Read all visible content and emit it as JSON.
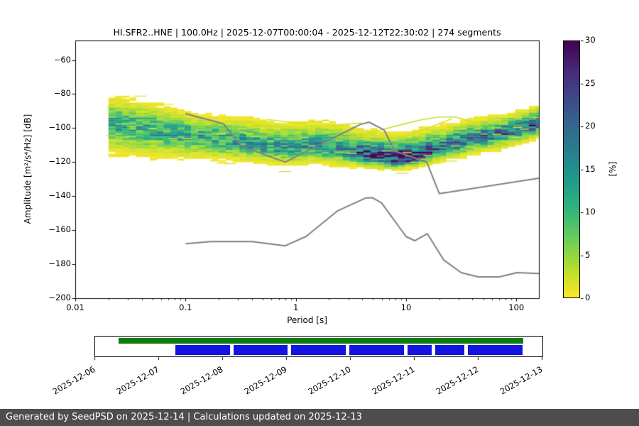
{
  "title": "HI.SFR2..HNE | 100.0Hz | 2025-12-07T00:00:04 - 2025-12-12T22:30:02 | 274 segments",
  "footer": {
    "text": "Generated by SeedPSD on 2025-12-14 | Calculations updated on 2025-12-13",
    "background": "#4d4d4d"
  },
  "axes": {
    "xlabel": "Period [s]",
    "ylabel": "Amplitude [m²/s⁴/Hz] [dB]",
    "xticks": [
      {
        "value": 0.01,
        "label": "0.01"
      },
      {
        "value": 0.1,
        "label": "0.1"
      },
      {
        "value": 1,
        "label": "1"
      },
      {
        "value": 10,
        "label": "10"
      },
      {
        "value": 100,
        "label": "100"
      }
    ],
    "yticks": [
      {
        "value": -60,
        "label": "−60"
      },
      {
        "value": -80,
        "label": "−80"
      },
      {
        "value": -100,
        "label": "−100"
      },
      {
        "value": -120,
        "label": "−120"
      },
      {
        "value": -140,
        "label": "−140"
      },
      {
        "value": -160,
        "label": "−160"
      },
      {
        "value": -180,
        "label": "−180"
      },
      {
        "value": -200,
        "label": "−200"
      }
    ]
  },
  "colorbar": {
    "label": "[%]",
    "min": 0,
    "max": 30,
    "ticks": [
      {
        "value": 0,
        "label": "0"
      },
      {
        "value": 5,
        "label": "5"
      },
      {
        "value": 10,
        "label": "10"
      },
      {
        "value": 15,
        "label": "15"
      },
      {
        "value": 20,
        "label": "20"
      },
      {
        "value": 25,
        "label": "25"
      },
      {
        "value": 30,
        "label": "30"
      }
    ],
    "colors": [
      "#440154",
      "#482878",
      "#3e4989",
      "#31688e",
      "#26828e",
      "#1f9e89",
      "#35b779",
      "#6ece58",
      "#b5de2b",
      "#fde725"
    ]
  },
  "chart_data": {
    "type": "heatmap",
    "title": "HI.SFR2..HNE | 100.0Hz | 2025-12-07T00:00:04 - 2025-12-12T22:30:02 | 274 segments",
    "xlabel": "Period [s]",
    "ylabel": "Amplitude [m²/s⁴/Hz] [dB]",
    "x_scale": "log",
    "xlim": [
      0.01,
      160
    ],
    "ylim": [
      -200,
      -48.5
    ],
    "colorbar_units": "%",
    "colorbar_range": [
      0,
      30
    ],
    "density_profile": [
      {
        "period": 0.02,
        "top": -82,
        "mode": -96,
        "bottom": -113,
        "peak": 10
      },
      {
        "period": 0.03,
        "top": -84,
        "mode": -98,
        "bottom": -114,
        "peak": 11
      },
      {
        "period": 0.05,
        "top": -87,
        "mode": -100,
        "bottom": -115,
        "peak": 12
      },
      {
        "period": 0.1,
        "top": -91,
        "mode": -103,
        "bottom": -116,
        "peak": 12
      },
      {
        "period": 0.2,
        "top": -94,
        "mode": -106,
        "bottom": -117,
        "peak": 12
      },
      {
        "period": 0.4,
        "top": -96,
        "mode": -109,
        "bottom": -118,
        "peak": 13
      },
      {
        "period": 0.8,
        "top": -98,
        "mode": -112,
        "bottom": -120,
        "peak": 14
      },
      {
        "period": 1.5,
        "top": -97,
        "mode": -110,
        "bottom": -119,
        "peak": 13
      },
      {
        "period": 3.0,
        "top": -100,
        "mode": -113,
        "bottom": -121,
        "peak": 15
      },
      {
        "period": 5.0,
        "top": -104,
        "mode": -116,
        "bottom": -122,
        "peak": 24
      },
      {
        "period": 8.0,
        "top": -106,
        "mode": -117.5,
        "bottom": -123,
        "peak": 30
      },
      {
        "period": 12.0,
        "top": -104,
        "mode": -116.5,
        "bottom": -122,
        "peak": 26
      },
      {
        "period": 20.0,
        "top": -100,
        "mode": -111,
        "bottom": -118,
        "peak": 17
      },
      {
        "period": 40.0,
        "top": -96,
        "mode": -106,
        "bottom": -114,
        "peak": 17
      },
      {
        "period": 80.0,
        "top": -93,
        "mode": -102,
        "bottom": -110,
        "peak": 18
      },
      {
        "period": 160.0,
        "top": -88,
        "mode": -97,
        "bottom": -104,
        "peak": 20
      }
    ],
    "outlier_tracks": [
      {
        "pct": 2.5,
        "points": [
          [
            4,
            -104
          ],
          [
            6,
            -101
          ],
          [
            9,
            -98
          ],
          [
            14,
            -95
          ],
          [
            20,
            -93.5
          ],
          [
            28,
            -93.5
          ],
          [
            38,
            -96
          ],
          [
            50,
            -100
          ]
        ]
      },
      {
        "pct": 2.0,
        "points": [
          [
            9,
            -106
          ],
          [
            13,
            -102
          ],
          [
            19,
            -98
          ],
          [
            26,
            -94.5
          ]
        ]
      },
      {
        "pct": 2.0,
        "points": [
          [
            0.25,
            -96
          ],
          [
            0.5,
            -98
          ],
          [
            1.1,
            -100
          ],
          [
            2.5,
            -98
          ],
          [
            4,
            -97
          ]
        ]
      },
      {
        "pct": 1.5,
        "points": [
          [
            0.55,
            -95
          ],
          [
            1,
            -97
          ],
          [
            2,
            -95.5
          ]
        ]
      }
    ],
    "noise_models": {
      "color": "#808080",
      "nhnm": [
        [
          0.1,
          -91.5
        ],
        [
          0.22,
          -97.4
        ],
        [
          0.32,
          -110.5
        ],
        [
          0.8,
          -120.0
        ],
        [
          3.8,
          -98.0
        ],
        [
          4.6,
          -96.5
        ],
        [
          6.3,
          -101.0
        ],
        [
          7.9,
          -113.5
        ],
        [
          15.4,
          -120.0
        ],
        [
          20.0,
          -138.5
        ],
        [
          160.0,
          -129.5
        ]
      ],
      "nlnm": [
        [
          0.1,
          -168.0
        ],
        [
          0.17,
          -166.7
        ],
        [
          0.4,
          -166.7
        ],
        [
          0.8,
          -169.2
        ],
        [
          1.24,
          -163.7
        ],
        [
          2.4,
          -148.6
        ],
        [
          4.3,
          -141.1
        ],
        [
          5.0,
          -141.1
        ],
        [
          6.0,
          -144.0
        ],
        [
          10.0,
          -163.8
        ],
        [
          12.0,
          -166.2
        ],
        [
          15.6,
          -162.1
        ],
        [
          21.9,
          -177.5
        ],
        [
          31.6,
          -185.0
        ],
        [
          45.0,
          -187.5
        ],
        [
          70.0,
          -187.5
        ],
        [
          101.0,
          -185.0
        ],
        [
          160.0,
          -185.5
        ]
      ]
    }
  },
  "timeline": {
    "dates": [
      "2025-12-06",
      "2025-12-07",
      "2025-12-08",
      "2025-12-09",
      "2025-12-10",
      "2025-12-11",
      "2025-12-12",
      "2025-12-13"
    ],
    "rows": [
      {
        "name": "availability-green",
        "color": "#0f7d0f",
        "segments": [
          [
            0.052,
            0.957
          ]
        ]
      },
      {
        "name": "coverage-blue",
        "color": "#1414e0",
        "segments": [
          [
            0.18,
            0.302
          ],
          [
            0.31,
            0.43
          ],
          [
            0.438,
            0.56
          ],
          [
            0.568,
            0.69
          ],
          [
            0.698,
            0.752
          ],
          [
            0.76,
            0.826
          ],
          [
            0.834,
            0.955
          ]
        ]
      }
    ]
  }
}
